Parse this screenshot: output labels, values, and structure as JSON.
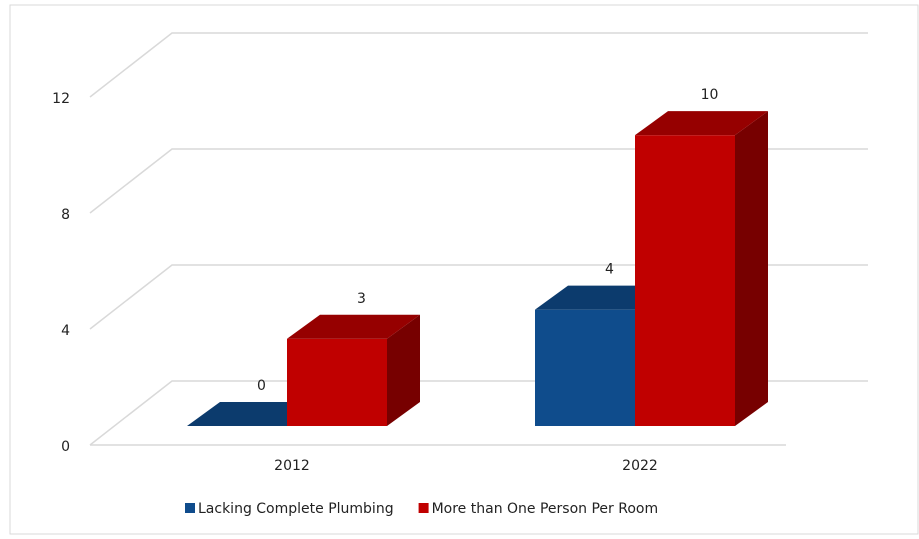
{
  "chart_data": {
    "type": "bar3d",
    "categories": [
      "2012",
      "2022"
    ],
    "series": [
      {
        "name": "Lacking Complete Plumbing",
        "color": "#0f4c8c",
        "values": [
          0,
          4
        ]
      },
      {
        "name": "More than One Person Per Room",
        "color": "#c00000",
        "values": [
          3,
          10
        ]
      }
    ],
    "ylim": [
      0,
      12
    ],
    "yticks": [
      0,
      4,
      8,
      12
    ],
    "grid": true,
    "legend": "bottom"
  }
}
